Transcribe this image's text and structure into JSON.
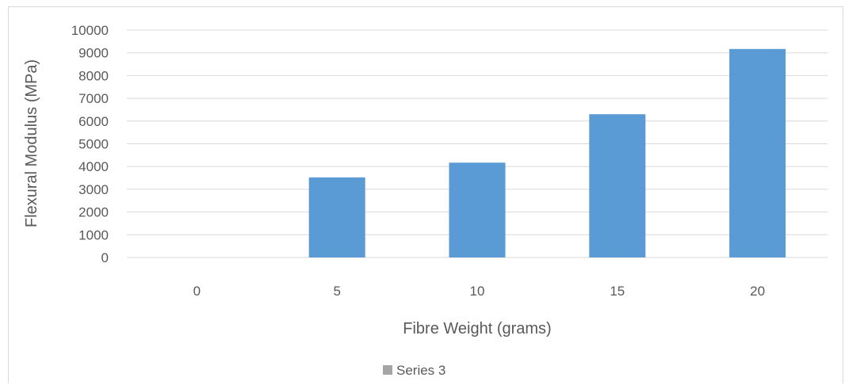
{
  "chart_data": {
    "type": "bar",
    "categories": [
      "0",
      "5",
      "10",
      "15",
      "20"
    ],
    "series": [
      {
        "name": "Series 3",
        "values": [
          0,
          3520,
          4170,
          6300,
          9170
        ],
        "color": "#5b9bd5"
      }
    ],
    "xlabel": "Fibre Weight (grams)",
    "ylabel": "Flexural Modulus (MPa)",
    "ylim": [
      0,
      10000
    ],
    "yticks": [
      "0",
      "1000",
      "2000",
      "3000",
      "4000",
      "5000",
      "6000",
      "7000",
      "8000",
      "9000",
      "10000"
    ],
    "grid": true,
    "legend_position": "bottom",
    "colors": {
      "grid": "#d9d9d9",
      "axis": "#d9d9d9",
      "text": "#595959",
      "legend_swatch": "#a5a5a5"
    }
  }
}
